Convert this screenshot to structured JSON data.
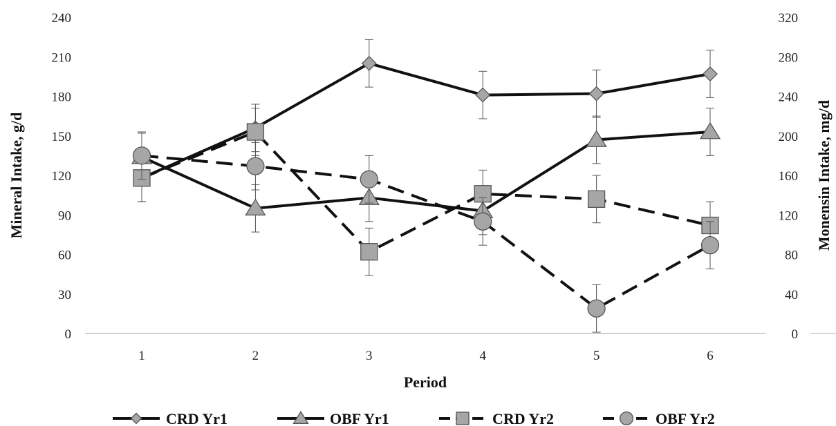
{
  "chart_data": {
    "type": "line",
    "xlabel": "Period",
    "ylabel": "Mineral Intake, g/d",
    "y2label": "Monensin Intake, mg/d",
    "categories": [
      "1",
      "2",
      "3",
      "4",
      "5",
      "6"
    ],
    "ylim": [
      0,
      240
    ],
    "y2lim": [
      0,
      320
    ],
    "yticks": [
      "0",
      "30",
      "60",
      "90",
      "120",
      "150",
      "180",
      "210",
      "240"
    ],
    "y2ticks": [
      "0",
      "40",
      "80",
      "120",
      "160",
      "200",
      "240",
      "280",
      "320"
    ],
    "grid": false,
    "legend_position": "bottom",
    "series": [
      {
        "name": "CRD Yr1",
        "marker": "diamond",
        "line_style": "solid",
        "values": [
          118,
          156,
          205,
          181,
          182,
          197
        ],
        "errors": [
          18,
          18,
          18,
          18,
          18,
          18
        ]
      },
      {
        "name": "OBF Yr1",
        "marker": "triangle",
        "line_style": "solid",
        "values": [
          134,
          95,
          103,
          93,
          147,
          153
        ],
        "errors": [
          18,
          18,
          18,
          18,
          18,
          18
        ]
      },
      {
        "name": "CRD Yr2",
        "marker": "square",
        "line_style": "dashed",
        "values": [
          118,
          153,
          62,
          106,
          102,
          82
        ],
        "errors": [
          18,
          18,
          18,
          18,
          18,
          18
        ]
      },
      {
        "name": "OBF Yr2",
        "marker": "circle",
        "line_style": "dashed",
        "values": [
          135,
          127,
          117,
          85,
          19,
          67
        ],
        "errors": [
          18,
          18,
          18,
          18,
          18,
          18
        ]
      }
    ],
    "colors": {
      "line": "#111111",
      "marker_fill": "#a6a6a6",
      "marker_stroke": "#555555",
      "axis": "#bfbfbf",
      "error_bar": "#555555"
    }
  }
}
